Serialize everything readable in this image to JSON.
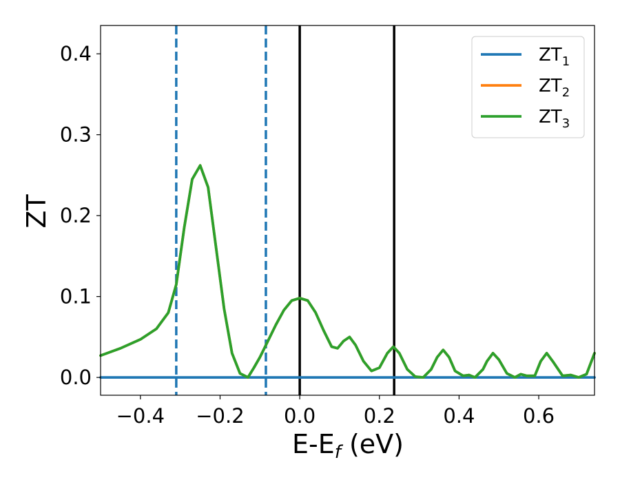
{
  "chart_data": {
    "type": "line",
    "xlabel": "E-E",
    "xlabel_sub": "f",
    "xlabel_unit": " (eV)",
    "ylabel": "ZT",
    "xlim": [
      -0.5,
      0.74
    ],
    "ylim": [
      -0.022,
      0.435
    ],
    "x_ticks": [
      -0.4,
      -0.2,
      0.0,
      0.2,
      0.4,
      0.6
    ],
    "x_tick_labels": [
      "−0.4",
      "−0.2",
      "0.0",
      "0.2",
      "0.4",
      "0.6"
    ],
    "y_ticks": [
      0.0,
      0.1,
      0.2,
      0.3,
      0.4
    ],
    "y_tick_labels": [
      "0.0",
      "0.1",
      "0.2",
      "0.3",
      "0.4"
    ],
    "grid": false,
    "legend_position": "top-right",
    "series": [
      {
        "name": "ZT",
        "name_sub": "1",
        "color": "#1f77b4",
        "x": [
          -0.5,
          0.74
        ],
        "y": [
          0.0,
          0.0
        ]
      },
      {
        "name": "ZT",
        "name_sub": "2",
        "color": "#ff7f0e",
        "x": [
          -0.5,
          -0.45,
          -0.4,
          -0.36,
          -0.33,
          -0.31,
          -0.29,
          -0.27,
          -0.25,
          -0.23,
          -0.21,
          -0.19,
          -0.17,
          -0.15,
          -0.13,
          -0.115,
          -0.1,
          -0.08,
          -0.06,
          -0.04,
          -0.02,
          0.0,
          0.02,
          0.04,
          0.06,
          0.08,
          0.095,
          0.11,
          0.125,
          0.14,
          0.16,
          0.18,
          0.2,
          0.22,
          0.235,
          0.25,
          0.27,
          0.29,
          0.31,
          0.33,
          0.345,
          0.36,
          0.375,
          0.39,
          0.41,
          0.425,
          0.44,
          0.46,
          0.47,
          0.485,
          0.5,
          0.52,
          0.54,
          0.555,
          0.57,
          0.59,
          0.605,
          0.62,
          0.635,
          0.66,
          0.68,
          0.7,
          0.72,
          0.74
        ],
        "y": [
          0.027,
          0.036,
          0.047,
          0.06,
          0.08,
          0.115,
          0.185,
          0.245,
          0.262,
          0.235,
          0.16,
          0.085,
          0.03,
          0.005,
          0.0,
          0.012,
          0.025,
          0.045,
          0.065,
          0.083,
          0.095,
          0.098,
          0.095,
          0.08,
          0.058,
          0.038,
          0.036,
          0.045,
          0.05,
          0.04,
          0.02,
          0.008,
          0.012,
          0.03,
          0.038,
          0.03,
          0.01,
          0.001,
          0.0,
          0.01,
          0.025,
          0.034,
          0.025,
          0.008,
          0.002,
          0.003,
          0.0,
          0.01,
          0.02,
          0.03,
          0.022,
          0.005,
          0.0,
          0.004,
          0.002,
          0.002,
          0.02,
          0.03,
          0.02,
          0.002,
          0.003,
          0.0,
          0.004,
          0.03
        ]
      },
      {
        "name": "ZT",
        "name_sub": "3",
        "color": "#2ca02c",
        "x": [
          -0.5,
          -0.45,
          -0.4,
          -0.36,
          -0.33,
          -0.31,
          -0.29,
          -0.27,
          -0.25,
          -0.23,
          -0.21,
          -0.19,
          -0.17,
          -0.15,
          -0.13,
          -0.115,
          -0.1,
          -0.08,
          -0.06,
          -0.04,
          -0.02,
          0.0,
          0.02,
          0.04,
          0.06,
          0.08,
          0.095,
          0.11,
          0.125,
          0.14,
          0.16,
          0.18,
          0.2,
          0.22,
          0.235,
          0.25,
          0.27,
          0.29,
          0.31,
          0.33,
          0.345,
          0.36,
          0.375,
          0.39,
          0.41,
          0.425,
          0.44,
          0.46,
          0.47,
          0.485,
          0.5,
          0.52,
          0.54,
          0.555,
          0.57,
          0.59,
          0.605,
          0.62,
          0.635,
          0.66,
          0.68,
          0.7,
          0.72,
          0.74
        ],
        "y": [
          0.027,
          0.036,
          0.047,
          0.06,
          0.08,
          0.115,
          0.185,
          0.245,
          0.262,
          0.235,
          0.16,
          0.085,
          0.03,
          0.005,
          0.0,
          0.012,
          0.025,
          0.045,
          0.065,
          0.083,
          0.095,
          0.098,
          0.095,
          0.08,
          0.058,
          0.038,
          0.036,
          0.045,
          0.05,
          0.04,
          0.02,
          0.008,
          0.012,
          0.03,
          0.038,
          0.03,
          0.01,
          0.001,
          0.0,
          0.01,
          0.025,
          0.034,
          0.025,
          0.008,
          0.002,
          0.003,
          0.0,
          0.01,
          0.02,
          0.03,
          0.022,
          0.005,
          0.0,
          0.004,
          0.002,
          0.002,
          0.02,
          0.03,
          0.02,
          0.002,
          0.003,
          0.0,
          0.004,
          0.03
        ]
      }
    ],
    "vertical_lines": [
      {
        "x": -0.31,
        "style": "dashed",
        "color": "#1f77b4"
      },
      {
        "x": -0.085,
        "style": "dashed",
        "color": "#1f77b4"
      },
      {
        "x": 0.0,
        "style": "solid",
        "color": "#000000"
      },
      {
        "x": 0.237,
        "style": "solid",
        "color": "#000000"
      }
    ]
  }
}
